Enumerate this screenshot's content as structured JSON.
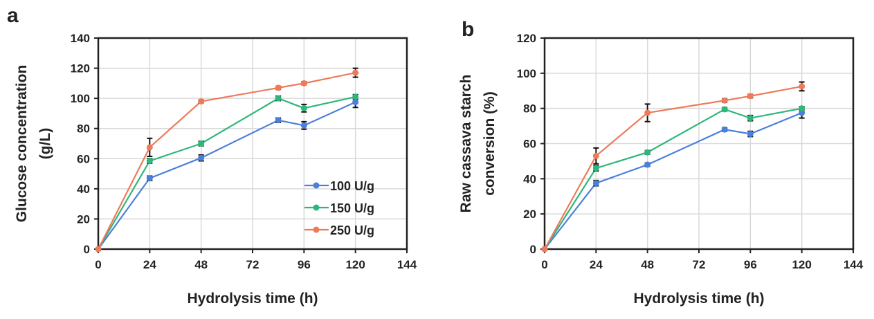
{
  "chart_data": [
    {
      "panel_label": "a",
      "type": "line",
      "xlabel": "Hydrolysis  time (h)",
      "ylabel_lines": [
        "Glucose concentration",
        "(g/L)"
      ],
      "xlim": [
        0,
        144
      ],
      "ylim": [
        0,
        140
      ],
      "xticks": [
        0,
        24,
        48,
        72,
        96,
        120,
        144
      ],
      "yticks": [
        0,
        20,
        40,
        60,
        80,
        100,
        120,
        140
      ],
      "grid": true,
      "legend_position": "bottom-right",
      "x": [
        0,
        24,
        48,
        84,
        96,
        120
      ],
      "series": [
        {
          "name": "100 U/g",
          "color": "#4a7fdc",
          "values": [
            0,
            47,
            60.5,
            85.5,
            82,
            97.5
          ],
          "errors": [
            0,
            1.5,
            2,
            1.5,
            2.5,
            3.5
          ]
        },
        {
          "name": "150 U/g",
          "color": "#2eb77a",
          "values": [
            0,
            58.5,
            70,
            100,
            93.5,
            101
          ],
          "errors": [
            0,
            1.5,
            1.5,
            1.5,
            2.5,
            1.5
          ]
        },
        {
          "name": "250 U/g",
          "color": "#ee7a5a",
          "values": [
            0,
            67.5,
            98,
            107,
            110,
            117
          ],
          "errors": [
            0,
            6,
            1,
            1,
            1,
            3
          ]
        }
      ]
    },
    {
      "panel_label": "b",
      "type": "line",
      "xlabel": "Hydrolysis  time (h)",
      "ylabel_lines": [
        "Raw cassava starch",
        "conversion (%)"
      ],
      "xlim": [
        0,
        144
      ],
      "ylim": [
        0,
        120
      ],
      "xticks": [
        0,
        24,
        48,
        72,
        96,
        120,
        144
      ],
      "yticks": [
        0,
        20,
        40,
        60,
        80,
        100,
        120
      ],
      "grid": true,
      "x": [
        0,
        24,
        48,
        84,
        96,
        120
      ],
      "series": [
        {
          "name": "100 U/g",
          "color": "#4a7fdc",
          "values": [
            0,
            37.5,
            48,
            68,
            65.5,
            77.5
          ],
          "errors": [
            0,
            1.5,
            1,
            1,
            1.5,
            3
          ]
        },
        {
          "name": "150 U/g",
          "color": "#2eb77a",
          "values": [
            0,
            46,
            55,
            79.5,
            74.5,
            80
          ],
          "errors": [
            0,
            1.5,
            1,
            1,
            1.5,
            1
          ]
        },
        {
          "name": "250 U/g",
          "color": "#ee7a5a",
          "values": [
            0,
            53,
            77.5,
            84.5,
            87,
            92.5
          ],
          "errors": [
            0,
            4.5,
            5,
            1,
            1,
            2.5
          ]
        }
      ]
    }
  ]
}
